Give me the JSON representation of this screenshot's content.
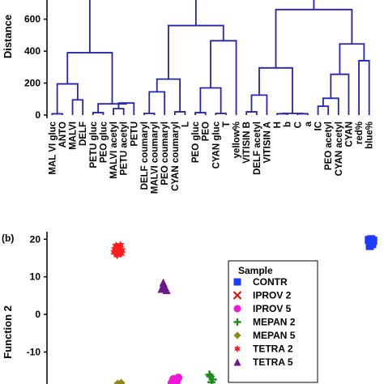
{
  "colors": {
    "dendrogram": "#2323b4",
    "axis": "#000000"
  },
  "chart_data": [
    {
      "type": "dendrogram",
      "ylabel": "Distance",
      "ylim": [
        0,
        720
      ],
      "yticks": [
        0,
        200,
        400,
        600
      ],
      "leaves": [
        "MAL VI gluc",
        "ANTO",
        "MALVI",
        "DELF",
        "PETU gluc",
        "PEO gluc",
        "MALVI acetyl",
        "PETU acetyl",
        "PETU",
        "DELF coumaryl",
        "MALVI coumaryl",
        "PEO coumaryl",
        "CYAN coumaryl",
        "L",
        "PEO gluc",
        "PEO",
        "CYAN gluc",
        "T",
        "yellow%",
        "VITISIN B",
        "DELF acetyl",
        "VITISIN A",
        "H",
        "b",
        "C",
        "a",
        "IC",
        "PEO acetyl",
        "CYAN acetyl",
        "CYAN",
        "red%",
        "blue%"
      ],
      "merges": [
        {
          "a": [
            "leaf",
            0
          ],
          "b": [
            "leaf",
            1
          ],
          "h": 8
        },
        {
          "a": [
            "leaf",
            2
          ],
          "b": [
            "leaf",
            3
          ],
          "h": 95
        },
        {
          "a": [
            "node",
            0
          ],
          "b": [
            "node",
            1
          ],
          "h": 195
        },
        {
          "a": [
            "leaf",
            4
          ],
          "b": [
            "leaf",
            5
          ],
          "h": 15
        },
        {
          "a": [
            "leaf",
            6
          ],
          "b": [
            "leaf",
            7
          ],
          "h": 40
        },
        {
          "a": [
            "node",
            4
          ],
          "b": [
            "leaf",
            8
          ],
          "h": 75
        },
        {
          "a": [
            "node",
            3
          ],
          "b": [
            "node",
            5
          ],
          "h": 70
        },
        {
          "a": [
            "node",
            2
          ],
          "b": [
            "node",
            6
          ],
          "h": 390
        },
        {
          "a": [
            "node",
            7
          ],
          "b": [
            "leaf",
            -1
          ],
          "h": 720
        },
        {
          "a": [
            "leaf",
            9
          ],
          "b": [
            "leaf",
            10
          ],
          "h": 10
        },
        {
          "a": [
            "node",
            9
          ],
          "b": [
            "leaf",
            11
          ],
          "h": 145
        },
        {
          "a": [
            "leaf",
            12
          ],
          "b": [
            "leaf",
            13
          ],
          "h": 20
        },
        {
          "a": [
            "node",
            10
          ],
          "b": [
            "node",
            11
          ],
          "h": 225
        },
        {
          "a": [
            "leaf",
            14
          ],
          "b": [
            "leaf",
            15
          ],
          "h": 15
        },
        {
          "a": [
            "leaf",
            16
          ],
          "b": [
            "leaf",
            17
          ],
          "h": 10
        },
        {
          "a": [
            "node",
            13
          ],
          "b": [
            "node",
            14
          ],
          "h": 170
        },
        {
          "a": [
            "node",
            15
          ],
          "b": [
            "leaf",
            18
          ],
          "h": 465
        },
        {
          "a": [
            "node",
            12
          ],
          "b": [
            "node",
            16
          ],
          "h": 560
        },
        {
          "a": [
            "node",
            17
          ],
          "b": [
            "leaf",
            -1
          ],
          "h": 720
        },
        {
          "a": [
            "leaf",
            19
          ],
          "b": [
            "leaf",
            20
          ],
          "h": 20
        },
        {
          "a": [
            "node",
            19
          ],
          "b": [
            "leaf",
            21
          ],
          "h": 125
        },
        {
          "a": [
            "leaf",
            22
          ],
          "b": [
            "leaf",
            23
          ],
          "h": 8
        },
        {
          "a": [
            "leaf",
            24
          ],
          "b": [
            "leaf",
            25
          ],
          "h": 8
        },
        {
          "a": [
            "node",
            21
          ],
          "b": [
            "node",
            22
          ],
          "h": 10
        },
        {
          "a": [
            "node",
            20
          ],
          "b": [
            "node",
            23
          ],
          "h": 295
        },
        {
          "a": [
            "leaf",
            26
          ],
          "b": [
            "leaf",
            27
          ],
          "h": 55
        },
        {
          "a": [
            "node",
            25
          ],
          "b": [
            "leaf",
            28
          ],
          "h": 105
        },
        {
          "a": [
            "node",
            26
          ],
          "b": [
            "leaf",
            29
          ],
          "h": 255
        },
        {
          "a": [
            "leaf",
            30
          ],
          "b": [
            "leaf",
            31
          ],
          "h": 340
        },
        {
          "a": [
            "node",
            27
          ],
          "b": [
            "node",
            28
          ],
          "h": 445
        },
        {
          "a": [
            "node",
            24
          ],
          "b": [
            "node",
            29
          ],
          "h": 660
        },
        {
          "a": [
            "node",
            30
          ],
          "b": [
            "leaf",
            -1
          ],
          "h": 720
        }
      ]
    },
    {
      "type": "scatter",
      "panel_label": "(b)",
      "ylabel": "Function 2",
      "ylim": [
        -18.5,
        22
      ],
      "yticks": [
        20,
        10,
        0,
        -10
      ],
      "ytick_labels": [
        "20",
        "10",
        "0",
        "-10"
      ],
      "xlim": [
        0,
        1
      ],
      "legend": {
        "title": "Sample",
        "placement": "right",
        "entries": [
          {
            "label": "CONTR",
            "marker": "square",
            "color": "#1e3cff"
          },
          {
            "label": "IPROV 2",
            "marker": "x",
            "color": "#e01010"
          },
          {
            "label": "IPROV 5",
            "marker": "circle",
            "color": "#f018d8"
          },
          {
            "label": "MEPAN 2",
            "marker": "plus",
            "color": "#1a8a1a"
          },
          {
            "label": "MEPAN 5",
            "marker": "diamond",
            "color": "#8a8a12"
          },
          {
            "label": "TETRA 2",
            "marker": "star",
            "color": "#ff1e1e"
          },
          {
            "label": "TETRA 5",
            "marker": "triangle",
            "color": "#6a1a8a"
          }
        ]
      },
      "series": [
        {
          "name": "CONTR",
          "points": [
            [
              0.955,
              19.8
            ],
            [
              0.96,
              19.3
            ],
            [
              0.965,
              18.7
            ],
            [
              0.958,
              18.2
            ],
            [
              0.968,
              19.6
            ],
            [
              0.962,
              20.0
            ]
          ]
        },
        {
          "name": "TETRA 2",
          "points": [
            [
              0.205,
              18.2
            ],
            [
              0.215,
              17.6
            ],
            [
              0.21,
              17.0
            ],
            [
              0.2,
              16.5
            ],
            [
              0.22,
              16.2
            ],
            [
              0.208,
              15.8
            ],
            [
              0.218,
              18.4
            ],
            [
              0.202,
              17.3
            ],
            [
              0.222,
              17.0
            ]
          ]
        },
        {
          "name": "TETRA 5",
          "points": [
            [
              0.345,
              8.5
            ],
            [
              0.35,
              7.3
            ],
            [
              0.34,
              6.8
            ],
            [
              0.355,
              6.5
            ],
            [
              0.345,
              7.8
            ]
          ]
        },
        {
          "name": "IPROV 5",
          "points": [
            [
              0.375,
              -17.2
            ],
            [
              0.385,
              -17.8
            ],
            [
              0.37,
              -18.2
            ],
            [
              0.39,
              -16.8
            ]
          ]
        },
        {
          "name": "MEPAN 2",
          "points": [
            [
              0.485,
              -16.5
            ],
            [
              0.492,
              -17.3
            ],
            [
              0.488,
              -18.0
            ],
            [
              0.482,
              -16.0
            ]
          ]
        },
        {
          "name": "MEPAN 5",
          "points": [
            [
              0.22,
              -18.2
            ],
            [
              0.21,
              -18.4
            ]
          ]
        }
      ]
    }
  ]
}
